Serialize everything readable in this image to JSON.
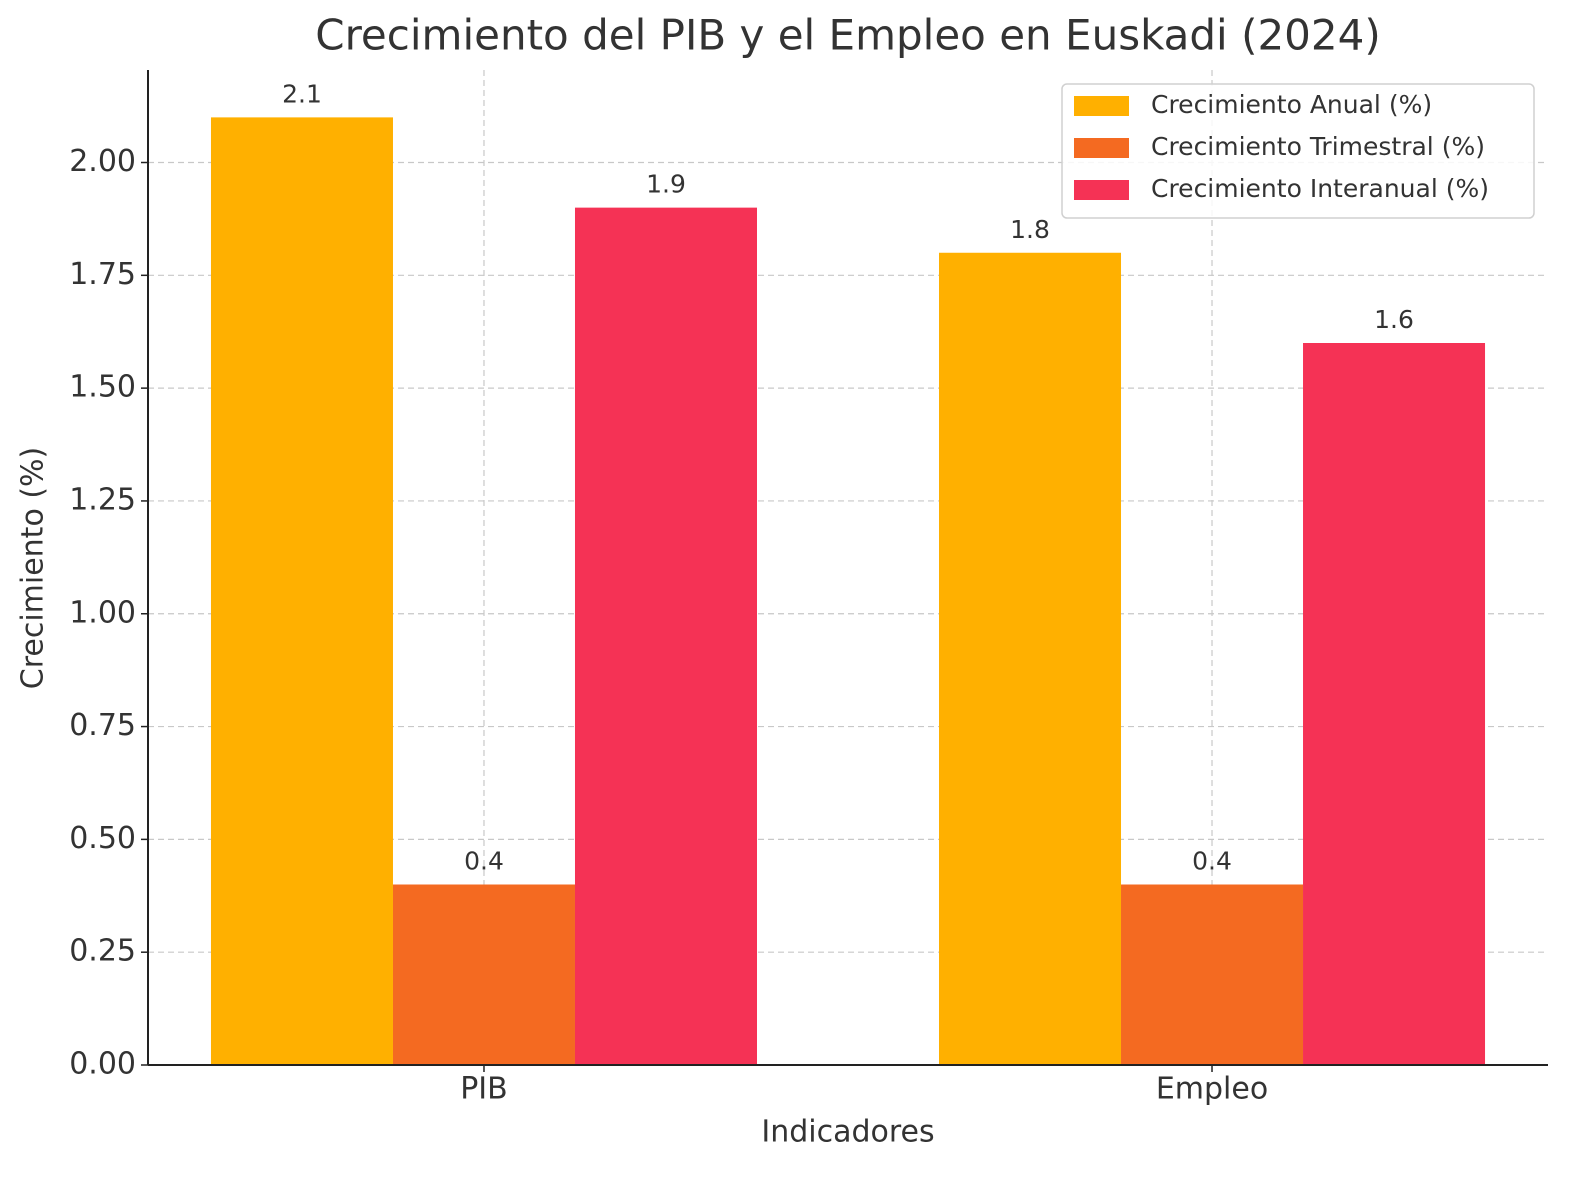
{
  "chart_data": {
    "type": "bar",
    "title": "Crecimiento del PIB y el Empleo en Euskadi (2024)",
    "x_label": "Indicadores",
    "y_label": "Crecimiento (%)",
    "categories": [
      "PIB",
      "Empleo"
    ],
    "series": [
      {
        "name": "Crecimiento Anual (%)",
        "color": "#ffb000",
        "values": [
          2.1,
          1.8
        ]
      },
      {
        "name": "Crecimiento Trimestral (%)",
        "color": "#f46a21",
        "values": [
          0.4,
          0.4
        ]
      },
      {
        "name": "Crecimiento Interanual (%)",
        "color": "#f53255",
        "values": [
          1.9,
          1.6
        ]
      }
    ],
    "ylim": [
      0,
      2.205
    ],
    "yticks": [
      {
        "value": 0,
        "label": "0.00"
      },
      {
        "value": 0.25,
        "label": "0.25"
      },
      {
        "value": 0.5,
        "label": "0.50"
      },
      {
        "value": 0.75,
        "label": "0.75"
      },
      {
        "value": 1,
        "label": "1.00"
      },
      {
        "value": 1.25,
        "label": "1.25"
      },
      {
        "value": 1.5,
        "label": "1.50"
      },
      {
        "value": 1.75,
        "label": "1.75"
      },
      {
        "value": 2,
        "label": "2.00"
      }
    ],
    "grid": true,
    "legend": "upper right"
  }
}
